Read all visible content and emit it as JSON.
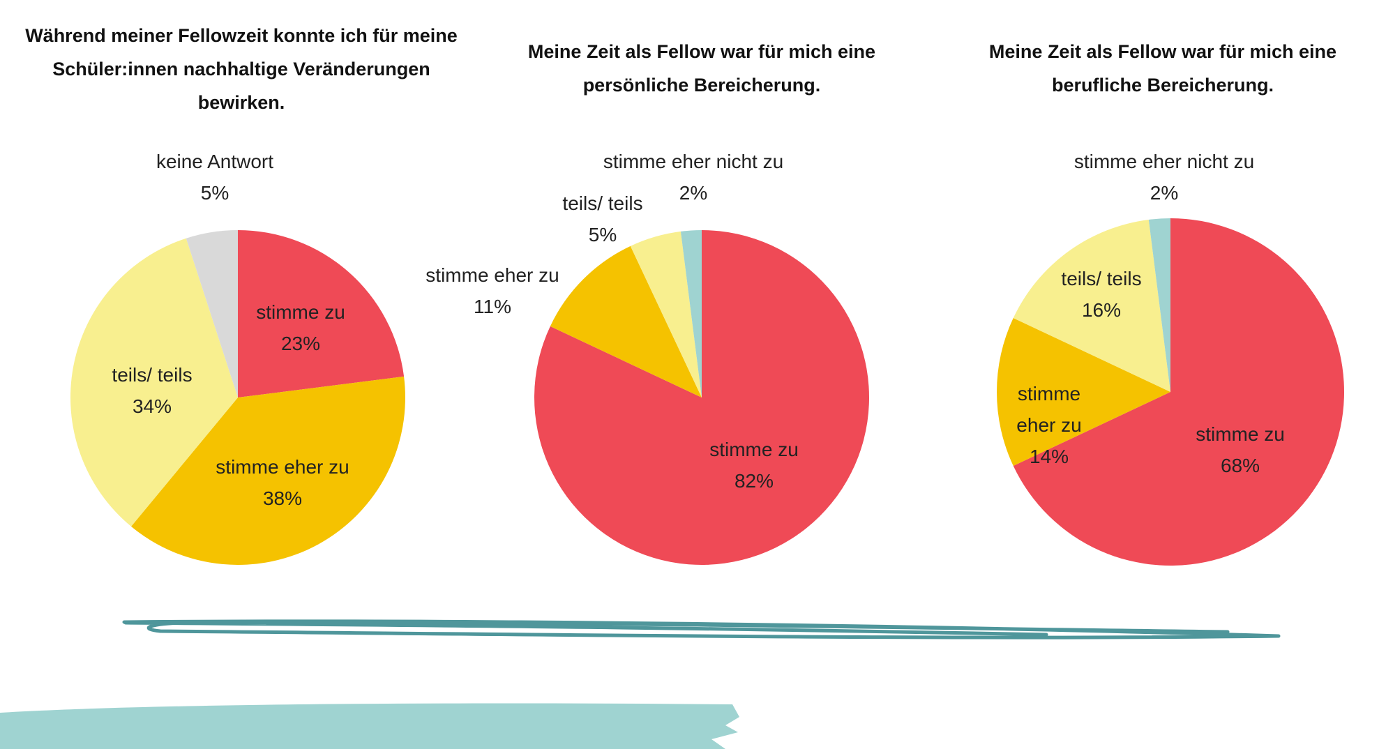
{
  "chart_data": [
    {
      "type": "pie",
      "title": "Während meiner Fellowzeit konnte ich für meine Schüler:innen nachhaltige Veränderungen bewirken.",
      "categories": [
        "stimme zu",
        "stimme eher zu",
        "teils/ teils",
        "keine Antwort"
      ],
      "values": [
        23,
        38,
        34,
        5
      ],
      "value_labels": [
        "23%",
        "38%",
        "34%",
        "5%"
      ],
      "colors": [
        "#ef4a56",
        "#f5c200",
        "#f8ef8f",
        "#d9d9d9"
      ]
    },
    {
      "type": "pie",
      "title": "Meine Zeit als Fellow war für mich eine persönliche Bereicherung.",
      "categories": [
        "stimme zu",
        "stimme eher zu",
        "teils/ teils",
        "stimme eher nicht zu"
      ],
      "values": [
        82,
        11,
        5,
        2
      ],
      "value_labels": [
        "82%",
        "11%",
        "5%",
        "2%"
      ],
      "colors": [
        "#ef4a56",
        "#f5c200",
        "#f8ef8f",
        "#9fd3d1"
      ]
    },
    {
      "type": "pie",
      "title": "Meine Zeit als Fellow war für mich eine berufliche Bereicherung.",
      "categories": [
        "stimme zu",
        "stimme eher zu",
        "teils/ teils",
        "stimme eher nicht zu"
      ],
      "values": [
        68,
        14,
        16,
        2
      ],
      "value_labels": [
        "68%",
        "14%",
        "16%",
        "2%"
      ],
      "colors": [
        "#ef4a56",
        "#f5c200",
        "#f8ef8f",
        "#9fd3d1"
      ]
    }
  ]
}
